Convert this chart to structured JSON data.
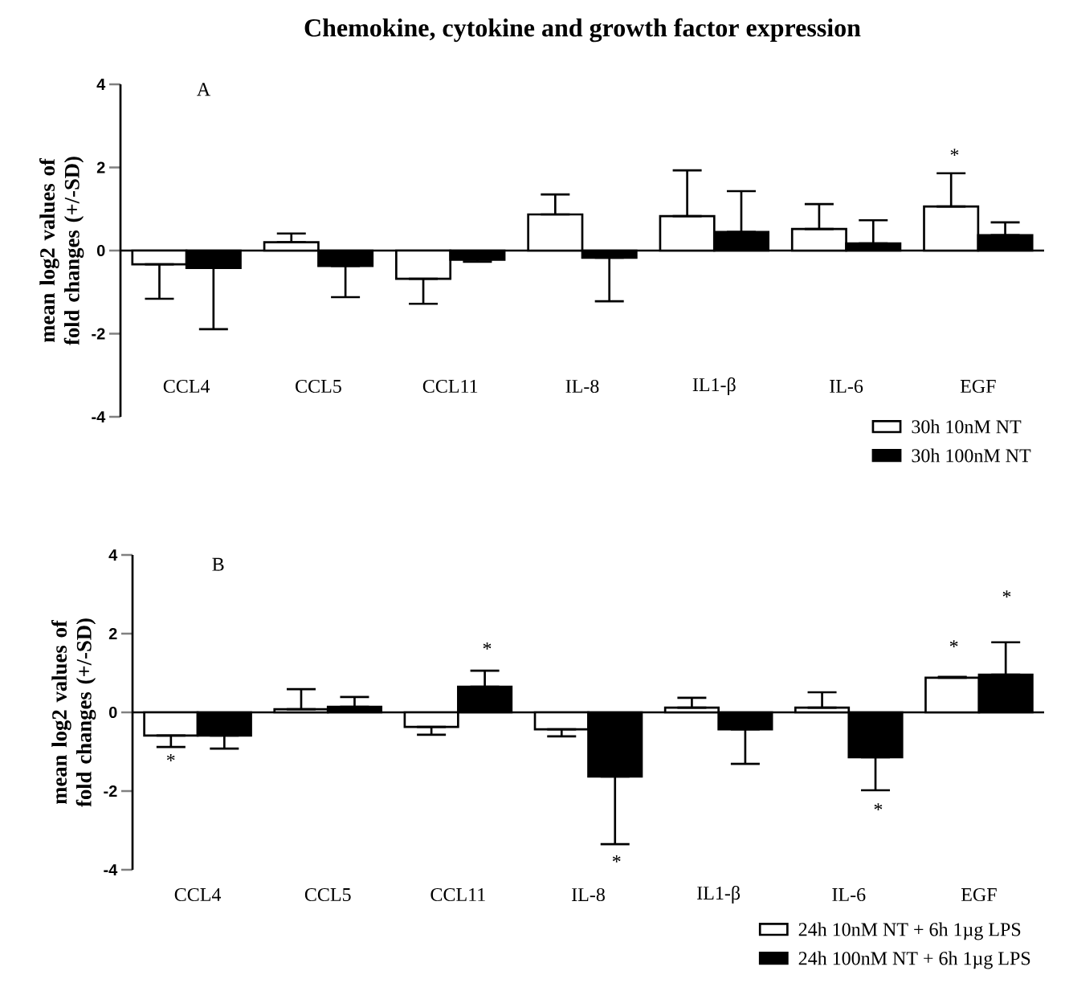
{
  "chart_data": [
    {
      "type": "bar",
      "title": "Chemokine, cytokine and growth factor expression",
      "ylabel": "mean log2 values of fold changes (+/-SD)",
      "categories": [
        "CCL4",
        "CCL5",
        "CCL11",
        "IL-8",
        "IL1-β",
        "IL-6",
        "EGF"
      ],
      "series": [
        {
          "name": "30h 10nM NT",
          "color": "#ffffff",
          "values": [
            -0.33,
            0.2,
            -0.68,
            0.87,
            0.83,
            0.52,
            1.06
          ],
          "errors": [
            [
              -1.16,
              -0.33
            ],
            [
              0.2,
              0.41
            ],
            [
              -1.28,
              -0.68
            ],
            [
              0.87,
              1.35
            ],
            [
              0.83,
              1.93
            ],
            [
              0.52,
              1.12
            ],
            [
              1.06,
              1.86
            ]
          ]
        },
        {
          "name": "30h 100nM NT",
          "color": "#000000",
          "values": [
            -0.42,
            -0.37,
            -0.22,
            -0.17,
            0.45,
            0.17,
            0.37
          ],
          "errors": [
            [
              -1.89,
              -0.42
            ],
            [
              -1.12,
              -0.37
            ],
            [
              -0.27,
              -0.22
            ],
            [
              -1.22,
              -0.17
            ],
            [
              0.45,
              1.43
            ],
            [
              0.17,
              0.73
            ],
            [
              0.37,
              0.68
            ]
          ]
        }
      ],
      "ylim": [
        -4,
        4
      ],
      "yticks": [
        -4,
        -2,
        0,
        2,
        4
      ],
      "legend": "bottom right",
      "annotations": [
        "A",
        "*"
      ]
    },
    {
      "type": "bar",
      "ylabel": "mean log2 values of fold changes (+/-SD)",
      "categories": [
        "CCL4",
        "CCL5",
        "CCL11",
        "IL-8",
        "IL1-β",
        "IL-6",
        "EGF"
      ],
      "series": [
        {
          "name": "24h 10nM NT + 6h 1µg LPS",
          "color": "#ffffff",
          "values": [
            -0.59,
            0.08,
            -0.37,
            -0.43,
            0.12,
            0.12,
            0.88
          ],
          "errors": [
            [
              -0.88,
              -0.59
            ],
            [
              0.08,
              0.59
            ],
            [
              -0.57,
              -0.37
            ],
            [
              -0.61,
              -0.43
            ],
            [
              0.12,
              0.37
            ],
            [
              0.12,
              0.51
            ],
            [
              0.88,
              0.9
            ]
          ]
        },
        {
          "name": "24h 100nM NT + 6h 1µg LPS",
          "color": "#000000",
          "values": [
            -0.59,
            0.14,
            0.65,
            -1.63,
            -0.43,
            -1.14,
            0.96
          ],
          "errors": [
            [
              -0.92,
              -0.59
            ],
            [
              0.14,
              0.39
            ],
            [
              0.65,
              1.06
            ],
            [
              -3.35,
              -1.63
            ],
            [
              -1.31,
              -0.43
            ],
            [
              -1.98,
              -1.14
            ],
            [
              0.96,
              1.78
            ]
          ]
        }
      ],
      "ylim": [
        -4,
        4
      ],
      "yticks": [
        -4,
        -2,
        0,
        2,
        4
      ],
      "legend": "bottom right",
      "annotations": [
        "B",
        "*",
        "*",
        "*",
        "*",
        "*",
        "*"
      ]
    }
  ]
}
